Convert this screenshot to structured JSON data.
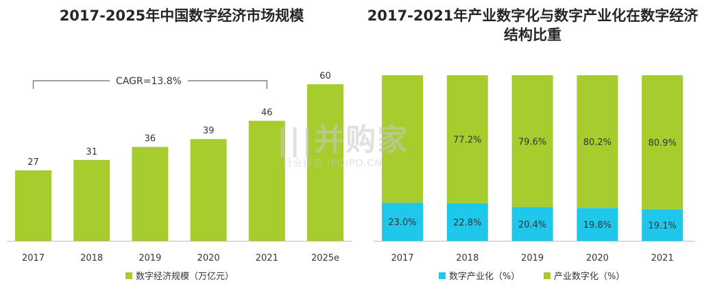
{
  "watermark": {
    "main": "|||并购家",
    "sub": "行业报告 IPOIPO.CN"
  },
  "chart_data": [
    {
      "type": "bar",
      "title": "2017-2025年中国数字经济市场规模",
      "categories": [
        "2017",
        "2018",
        "2019",
        "2020",
        "2021",
        "2025e"
      ],
      "series": [
        {
          "name": "数字经济规模（万亿元）",
          "values": [
            27,
            31,
            36,
            39,
            46,
            60
          ]
        }
      ],
      "annotation": "CAGR=13.8%",
      "ylim": [
        0,
        70
      ],
      "grid": false,
      "legend": "bottom",
      "colors": {
        "bar": "#a6cc2e"
      }
    },
    {
      "type": "bar",
      "stacked": true,
      "title": "2017-2021年产业数字化与数字产业化在数字经济结构比重",
      "categories": [
        "2017",
        "2018",
        "2019",
        "2020",
        "2021"
      ],
      "series": [
        {
          "name": "数字产业化（%）",
          "values": [
            23.0,
            22.8,
            20.4,
            19.8,
            19.1
          ],
          "labels": [
            "23.0%",
            "22.8%",
            "20.4%",
            "19.8%",
            "19.1%"
          ]
        },
        {
          "name": "产业数字化（%）",
          "values": [
            77.0,
            77.2,
            79.6,
            80.2,
            80.9
          ],
          "labels": [
            "",
            "77.2%",
            "79.6%",
            "80.2%",
            "80.9%"
          ]
        }
      ],
      "ylim": [
        0,
        100
      ],
      "grid": false,
      "legend": "bottom",
      "colors": {
        "bottom": "#1fc7ea",
        "top": "#a6cc2e"
      }
    }
  ]
}
